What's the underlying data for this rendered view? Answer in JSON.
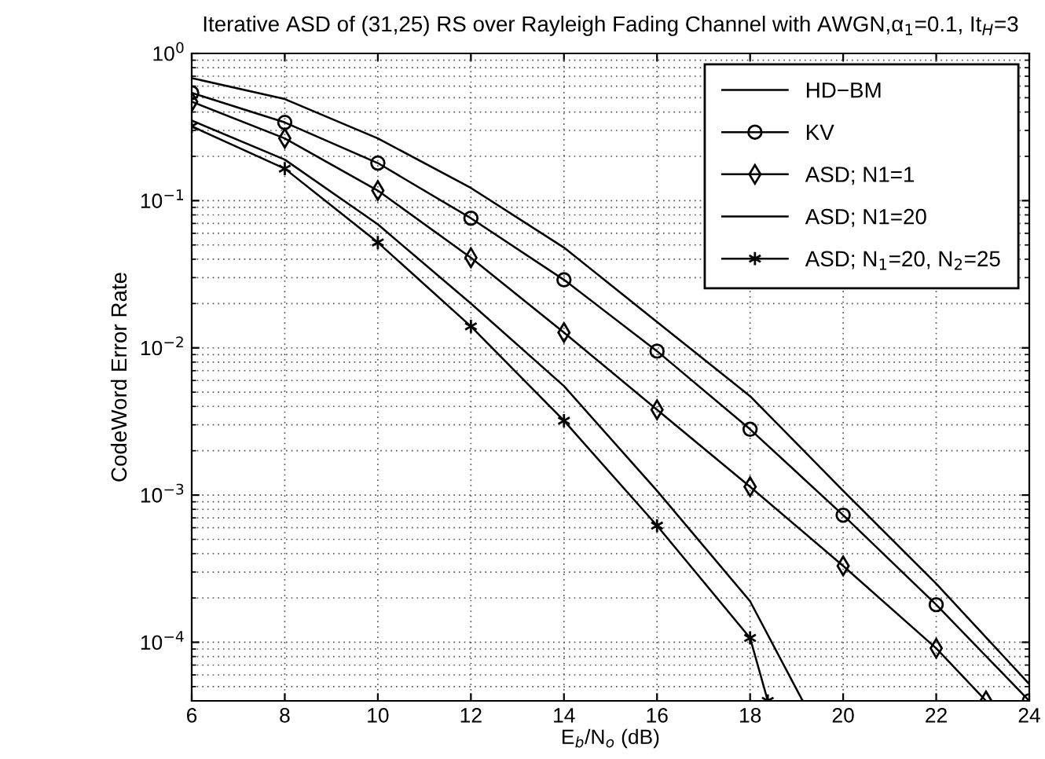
{
  "chart_data": {
    "type": "line",
    "title": "Iterative ASD of (31,25) RS over Rayleigh Fading Channel with AWGN,α$_{1}$=0.1, It$_{H}$=3",
    "xlabel": "E$_{b}$/N$_{o}$ (dB)",
    "ylabel": "CodeWord Error Rate",
    "log": "y",
    "grid": true,
    "legend": "top right",
    "line_style": "solid",
    "xlim": [
      6,
      24
    ],
    "xticks": [
      6,
      8,
      10,
      12,
      14,
      16,
      18,
      20,
      22,
      24
    ],
    "ylim": [
      4e-05,
      1
    ],
    "yticks": [
      {
        "value": 0.0001,
        "label": "10$^{−4}$"
      },
      {
        "value": 0.001,
        "label": "10$^{−3}$"
      },
      {
        "value": 0.01,
        "label": "10$^{−2}$"
      },
      {
        "value": 0.1,
        "label": "10$^{−1}$"
      },
      {
        "value": 1,
        "label": "10$^{0}$"
      }
    ],
    "series": [
      {
        "name": "HD−BM",
        "color": "#000000",
        "marker": "none",
        "x": [
          6,
          8,
          10,
          12,
          14,
          16,
          18,
          20,
          22,
          24
        ],
        "values": [
          0.68,
          0.49,
          0.265,
          0.122,
          0.048,
          0.015,
          0.0047,
          0.00107,
          0.00025,
          5.2e-05
        ]
      },
      {
        "name": "KV",
        "color": "#000000",
        "marker": "circle",
        "x": [
          6,
          8,
          10,
          12,
          14,
          16,
          18,
          20,
          22,
          24
        ],
        "values": [
          0.54,
          0.34,
          0.18,
          0.076,
          0.029,
          0.0095,
          0.0028,
          0.00073,
          0.00018,
          4e-05
        ]
      },
      {
        "name": "ASD; N1=1",
        "color": "#000000",
        "marker": "diamond",
        "x": [
          6,
          8,
          10,
          12,
          14,
          16,
          18,
          20,
          22,
          23.07
        ],
        "values": [
          0.47,
          0.265,
          0.117,
          0.041,
          0.0127,
          0.0038,
          0.00114,
          0.00033,
          9.1e-05,
          4e-05
        ]
      },
      {
        "name": "ASD; N1=20",
        "color": "#000000",
        "marker": "none",
        "x": [
          6,
          8,
          10,
          12,
          14,
          16,
          18,
          19.13
        ],
        "values": [
          0.35,
          0.19,
          0.069,
          0.02,
          0.0055,
          0.00107,
          0.00019,
          4e-05
        ]
      },
      {
        "name": "ASD; N$_{1}$=20, N$_{2}$=25",
        "color": "#000000",
        "marker": "cross",
        "x": [
          6,
          8,
          10,
          12,
          14,
          16,
          18,
          18.38
        ],
        "values": [
          0.32,
          0.165,
          0.052,
          0.014,
          0.0032,
          0.00062,
          0.000107,
          4e-05
        ]
      }
    ]
  }
}
